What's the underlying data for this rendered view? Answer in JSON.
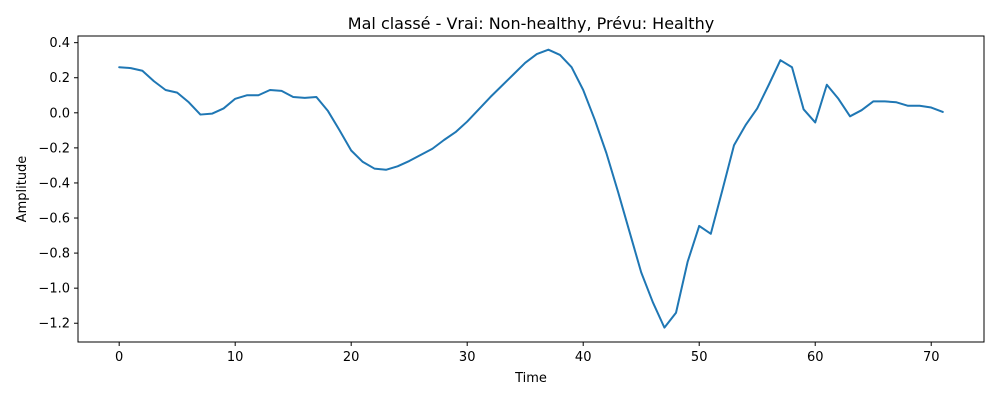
{
  "chart_data": {
    "type": "line",
    "title": "Mal classé - Vrai: Non-healthy, Prévu: Healthy",
    "xlabel": "Time",
    "ylabel": "Amplitude",
    "xlim": [
      -3.55,
      74.55
    ],
    "ylim": [
      -1.307,
      0.438
    ],
    "xticks": [
      0,
      10,
      20,
      30,
      40,
      50,
      60,
      70
    ],
    "yticks": [
      0.4,
      0.2,
      0.0,
      -0.2,
      -0.4,
      -0.6,
      -0.8,
      -1.0,
      -1.2
    ],
    "xtick_labels": [
      "0",
      "10",
      "20",
      "30",
      "40",
      "50",
      "60",
      "70"
    ],
    "ytick_labels": [
      "0.4",
      "0.2",
      "0.0",
      "−0.2",
      "−0.4",
      "−0.6",
      "−0.8",
      "−1.0",
      "−1.2"
    ],
    "grid": false,
    "series": [
      {
        "color": "#1f77b4",
        "x": [
          0,
          1,
          2,
          3,
          4,
          5,
          6,
          7,
          8,
          9,
          10,
          11,
          12,
          13,
          14,
          15,
          16,
          17,
          18,
          19,
          20,
          21,
          22,
          23,
          24,
          25,
          26,
          27,
          28,
          29,
          30,
          31,
          32,
          33,
          34,
          35,
          36,
          37,
          38,
          39,
          40,
          41,
          42,
          43,
          44,
          45,
          46,
          47,
          48,
          49,
          50,
          51,
          52,
          53,
          54,
          55,
          56,
          57,
          58,
          59,
          60,
          61,
          62,
          63,
          64,
          65,
          66,
          67,
          68,
          69,
          70,
          71
        ],
        "y": [
          0.26,
          0.255,
          0.24,
          0.18,
          0.13,
          0.115,
          0.06,
          -0.01,
          -0.005,
          0.025,
          0.08,
          0.1,
          0.1,
          0.13,
          0.125,
          0.09,
          0.085,
          0.09,
          0.01,
          -0.1,
          -0.215,
          -0.28,
          -0.318,
          -0.325,
          -0.305,
          -0.275,
          -0.24,
          -0.205,
          -0.155,
          -0.11,
          -0.05,
          0.02,
          0.09,
          0.155,
          0.22,
          0.285,
          0.335,
          0.36,
          0.33,
          0.26,
          0.13,
          -0.04,
          -0.23,
          -0.45,
          -0.68,
          -0.91,
          -1.08,
          -1.225,
          -1.14,
          -0.85,
          -0.645,
          -0.69,
          -0.44,
          -0.185,
          -0.07,
          0.025,
          0.16,
          0.3,
          0.26,
          0.02,
          -0.055,
          0.16,
          0.08,
          -0.02,
          0.015,
          0.065,
          0.065,
          0.06,
          0.04,
          0.04,
          0.03,
          0.005
        ]
      }
    ]
  }
}
